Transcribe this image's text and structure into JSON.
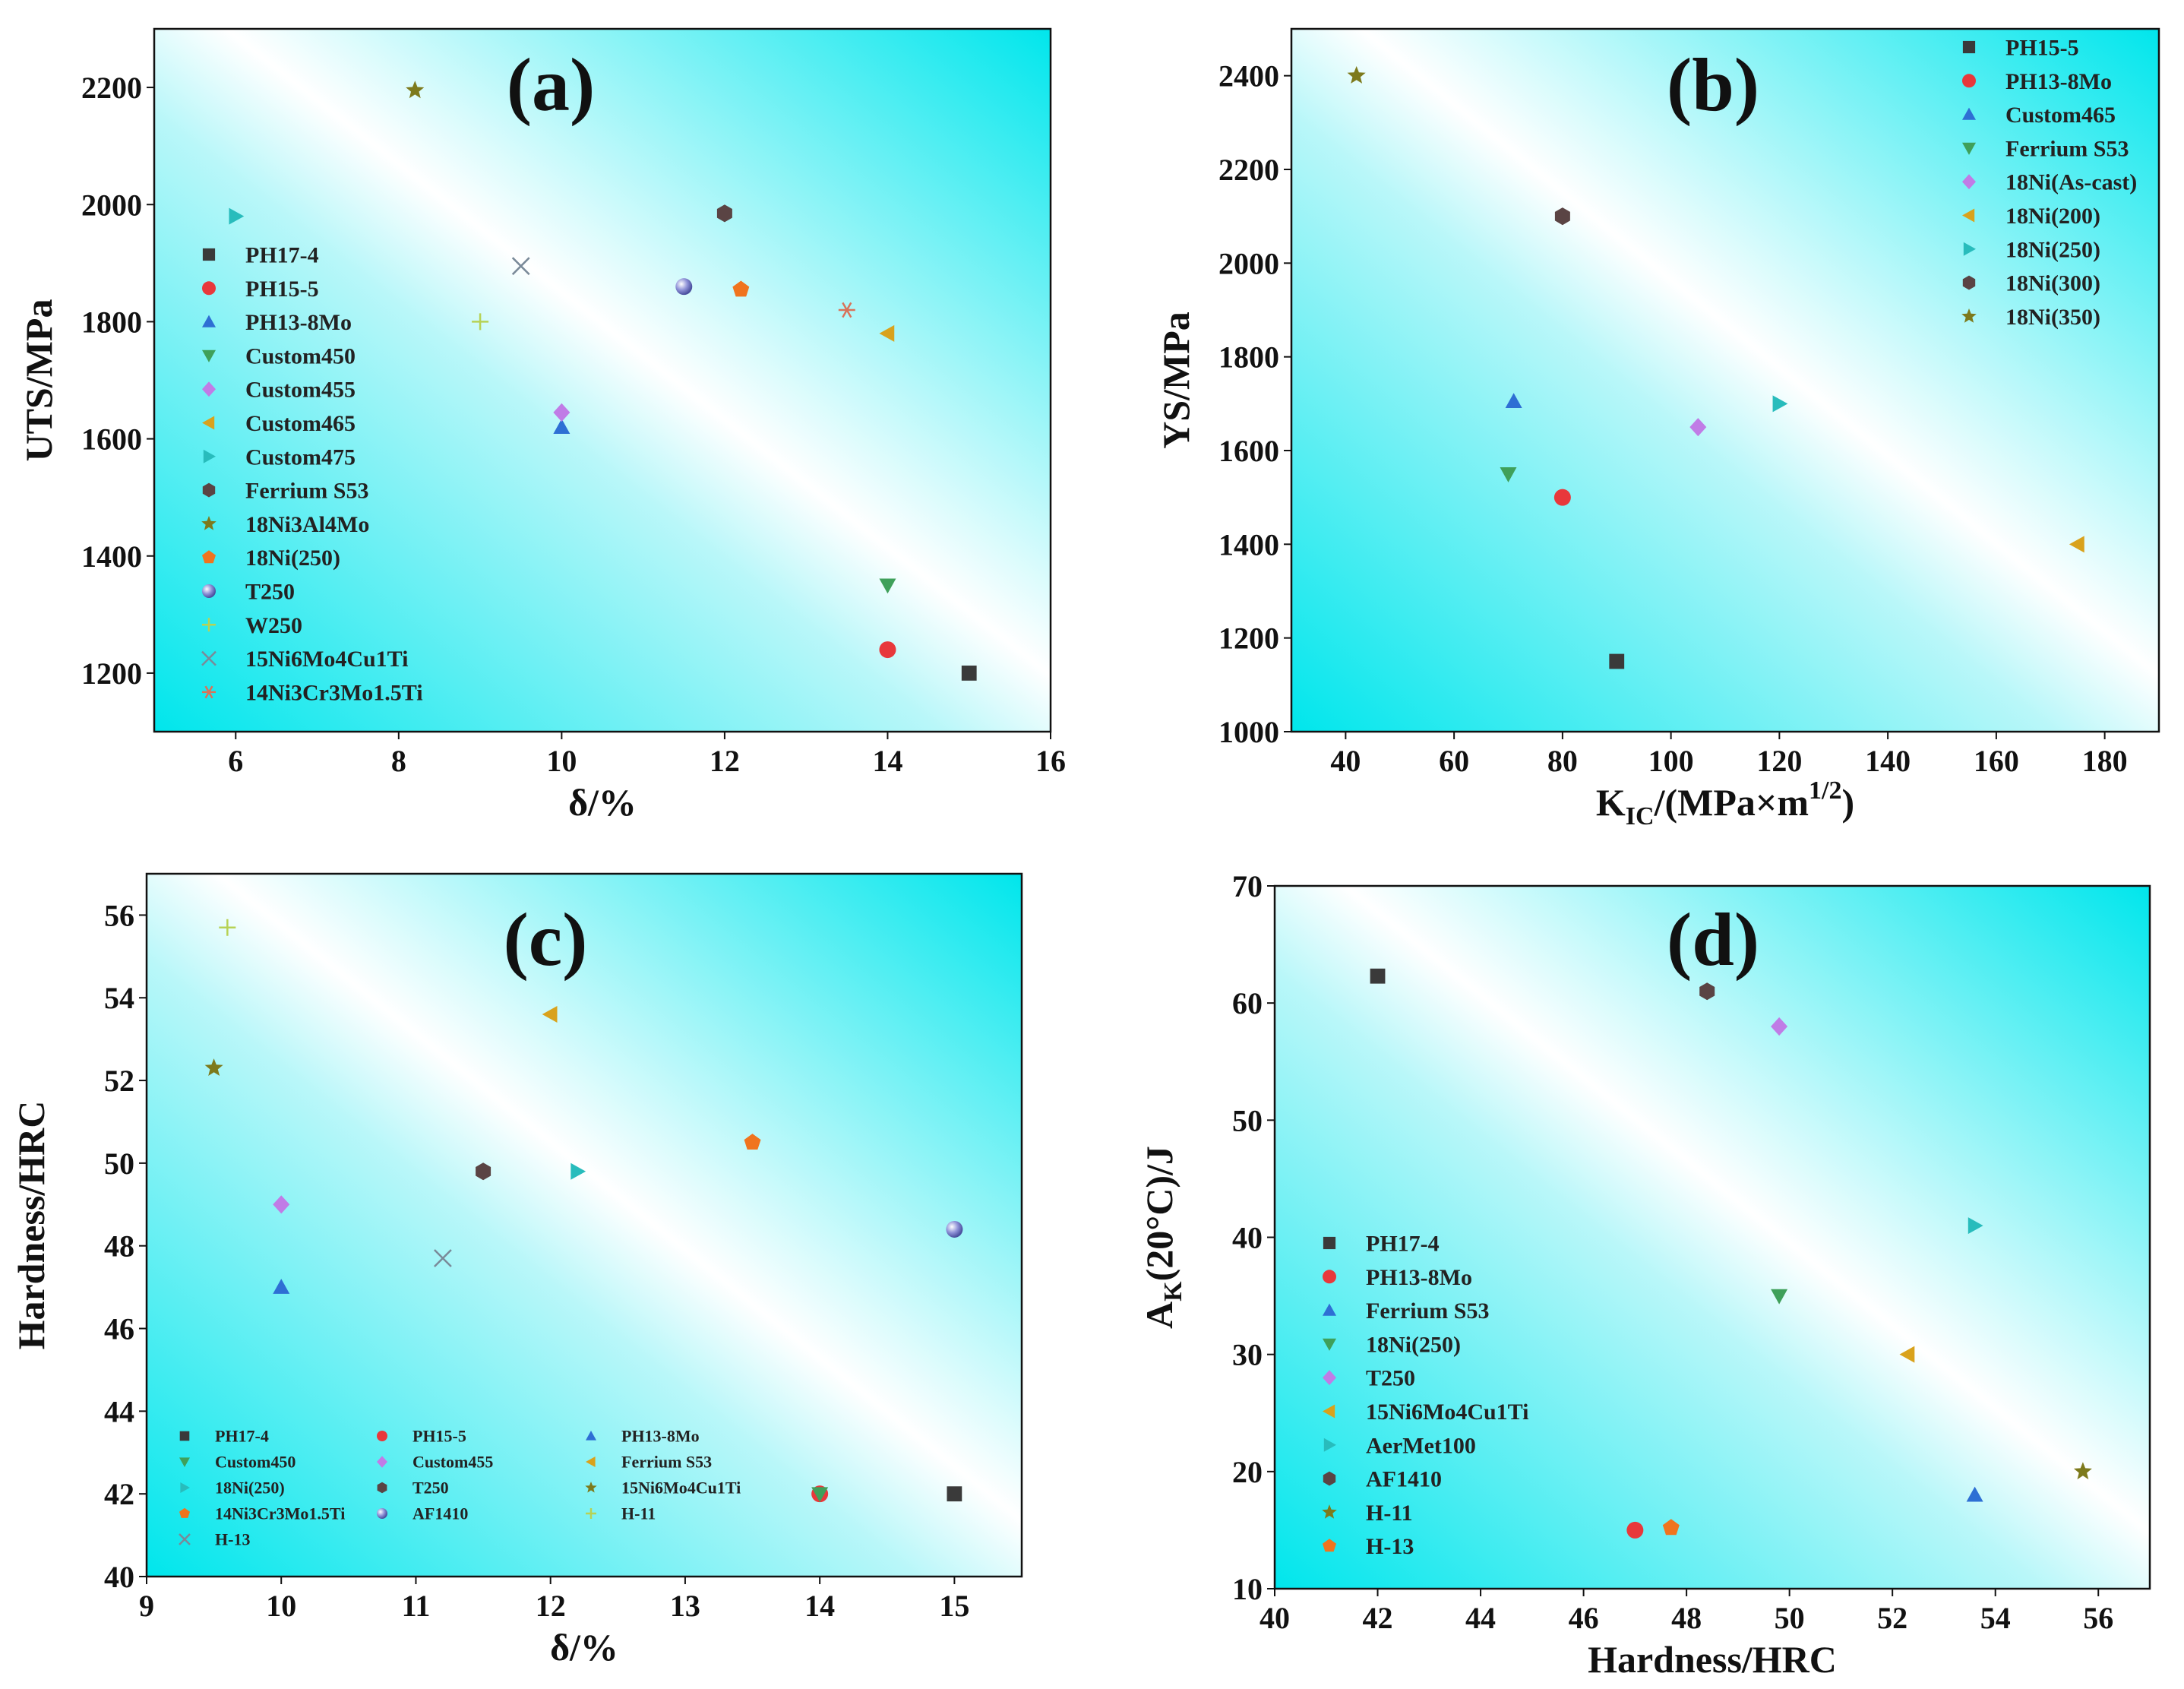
{
  "marker_colors": {
    "square": "#3a3a3a",
    "circle": "#e8383b",
    "triangle-up": "#2e6fd4",
    "triangle-down": "#3fa05a",
    "diamond": "#c07ce6",
    "triangle-left": "#d9a21c",
    "triangle-right": "#28bcbc",
    "hexagon": "#5a4444",
    "star": "#7d7a1c",
    "pentagon": "#f0741e",
    "sphere": "#8f92d8",
    "plus": "#b7d255",
    "x": "#7a8a99",
    "asterisk": "#d8735a"
  },
  "plot_gradient": {
    "from": "#00e6ec",
    "mid": "#b9f7f9",
    "to": "#ffffff"
  },
  "chart_data": [
    {
      "id": "a",
      "type": "scatter",
      "title": "(a)",
      "xlabel": "δ/%",
      "ylabel": "UTS/MPa",
      "xlim": [
        5,
        16
      ],
      "ylim": [
        1100,
        2300
      ],
      "xticks": [
        6,
        8,
        10,
        12,
        14,
        16
      ],
      "yticks": [
        1200,
        1400,
        1600,
        1800,
        2000,
        2200
      ],
      "legend": {
        "placement": "left",
        "columns": 1
      },
      "series": [
        {
          "name": "PH17-4",
          "marker": "square",
          "points": [
            [
              15,
              1200
            ]
          ]
        },
        {
          "name": "PH15-5",
          "marker": "circle",
          "points": [
            [
              14,
              1240
            ]
          ]
        },
        {
          "name": "PH13-8Mo",
          "marker": "triangle-up",
          "points": [
            [
              10,
              1620
            ]
          ]
        },
        {
          "name": "Custom450",
          "marker": "triangle-down",
          "points": [
            [
              14,
              1350
            ]
          ]
        },
        {
          "name": "Custom455",
          "marker": "diamond",
          "points": [
            [
              10,
              1645
            ]
          ]
        },
        {
          "name": "Custom465",
          "marker": "triangle-left",
          "points": [
            [
              14,
              1780
            ]
          ]
        },
        {
          "name": "Custom475",
          "marker": "triangle-right",
          "points": [
            [
              6,
              1980
            ]
          ]
        },
        {
          "name": "Ferrium S53",
          "marker": "hexagon",
          "points": [
            [
              12,
              1985
            ]
          ]
        },
        {
          "name": "18Ni3Al4Mo",
          "marker": "star",
          "points": [
            [
              8.2,
              2195
            ]
          ]
        },
        {
          "name": "18Ni(250)",
          "marker": "pentagon",
          "points": [
            [
              12.2,
              1855
            ]
          ]
        },
        {
          "name": "T250",
          "marker": "sphere",
          "points": [
            [
              11.5,
              1860
            ]
          ]
        },
        {
          "name": "W250",
          "marker": "plus",
          "points": [
            [
              9,
              1800
            ]
          ]
        },
        {
          "name": "15Ni6Mo4Cu1Ti",
          "marker": "x",
          "points": [
            [
              9.5,
              1895
            ]
          ]
        },
        {
          "name": "14Ni3Cr3Mo1.5Ti",
          "marker": "asterisk",
          "points": [
            [
              13.5,
              1820
            ]
          ]
        }
      ]
    },
    {
      "id": "b",
      "type": "scatter",
      "title": "(b)",
      "xlabel": "K",
      "xlabel_sub": "IC",
      "xlabel_rest": "/(MPa×m",
      "xlabel_sup": "1/2",
      "xlabel_end": ")",
      "ylabel": "YS/MPa",
      "xlim": [
        30,
        190
      ],
      "ylim": [
        1000,
        2500
      ],
      "xticks": [
        40,
        60,
        80,
        100,
        120,
        140,
        160,
        180
      ],
      "yticks": [
        1000,
        1200,
        1400,
        1600,
        1800,
        2000,
        2200,
        2400
      ],
      "legend": {
        "placement": "top-right",
        "columns": 1
      },
      "series": [
        {
          "name": "PH15-5",
          "marker": "square",
          "points": [
            [
              90,
              1150
            ]
          ]
        },
        {
          "name": "PH13-8Mo",
          "marker": "circle",
          "points": [
            [
              80,
              1500
            ]
          ]
        },
        {
          "name": "Custom465",
          "marker": "triangle-up",
          "points": [
            [
              71,
              1705
            ]
          ]
        },
        {
          "name": "Ferrium S53",
          "marker": "triangle-down",
          "points": [
            [
              70,
              1550
            ]
          ]
        },
        {
          "name": "18Ni(As-cast)",
          "marker": "diamond",
          "points": [
            [
              105,
              1650
            ]
          ]
        },
        {
          "name": "18Ni(200)",
          "marker": "triangle-left",
          "points": [
            [
              175,
              1400
            ]
          ]
        },
        {
          "name": "18Ni(250)",
          "marker": "triangle-right",
          "points": [
            [
              120,
              1700
            ]
          ]
        },
        {
          "name": "18Ni(300)",
          "marker": "hexagon",
          "points": [
            [
              80,
              2100
            ]
          ]
        },
        {
          "name": "18Ni(350)",
          "marker": "star",
          "points": [
            [
              42,
              2400
            ]
          ]
        }
      ]
    },
    {
      "id": "c",
      "type": "scatter",
      "title": "(c)",
      "xlabel": "δ/%",
      "ylabel": "Hardness/HRC",
      "xlim": [
        9,
        15.5
      ],
      "ylim": [
        40,
        57
      ],
      "xticks": [
        9,
        10,
        11,
        12,
        13,
        14,
        15
      ],
      "yticks": [
        40,
        42,
        44,
        46,
        48,
        50,
        52,
        54,
        56
      ],
      "legend": {
        "placement": "bottom-left",
        "columns": 3
      },
      "series": [
        {
          "name": "PH17-4",
          "marker": "square",
          "points": [
            [
              15,
              42
            ]
          ]
        },
        {
          "name": "PH15-5",
          "marker": "circle",
          "points": [
            [
              14,
              42
            ]
          ]
        },
        {
          "name": "PH13-8Mo",
          "marker": "triangle-up",
          "points": [
            [
              10,
              47
            ]
          ]
        },
        {
          "name": "Custom450",
          "marker": "triangle-down",
          "points": [
            [
              14,
              42
            ]
          ]
        },
        {
          "name": "Custom455",
          "marker": "diamond",
          "points": [
            [
              10,
              49
            ]
          ]
        },
        {
          "name": "Ferrium S53",
          "marker": "triangle-left",
          "points": [
            [
              12,
              53.6
            ]
          ]
        },
        {
          "name": "18Ni(250)",
          "marker": "triangle-right",
          "points": [
            [
              12.2,
              49.8
            ]
          ]
        },
        {
          "name": "T250",
          "marker": "hexagon",
          "points": [
            [
              11.5,
              49.8
            ]
          ]
        },
        {
          "name": "15Ni6Mo4Cu1Ti",
          "marker": "star",
          "points": [
            [
              9.5,
              52.3
            ]
          ]
        },
        {
          "name": "14Ni3Cr3Mo1.5Ti",
          "marker": "pentagon",
          "points": [
            [
              13.5,
              50.5
            ]
          ]
        },
        {
          "name": "AF1410",
          "marker": "sphere",
          "points": [
            [
              15,
              48.4
            ]
          ]
        },
        {
          "name": "H-11",
          "marker": "plus",
          "points": [
            [
              9.6,
              55.7
            ]
          ]
        },
        {
          "name": "H-13",
          "marker": "x",
          "points": [
            [
              11.2,
              47.7
            ]
          ]
        }
      ]
    },
    {
      "id": "d",
      "type": "scatter",
      "title": "(d)",
      "xlabel": "Hardness/HRC",
      "ylabel": "A",
      "ylabel_sub": "K",
      "ylabel_rest": "(20°C)/J",
      "xlim": [
        40,
        57
      ],
      "ylim": [
        10,
        70
      ],
      "xticks": [
        40,
        42,
        44,
        46,
        48,
        50,
        52,
        54,
        56
      ],
      "yticks": [
        10,
        20,
        30,
        40,
        50,
        60,
        70
      ],
      "legend": {
        "placement": "left",
        "columns": 1
      },
      "series": [
        {
          "name": "PH17-4",
          "marker": "square",
          "points": [
            [
              42,
              62.3
            ]
          ]
        },
        {
          "name": "PH13-8Mo",
          "marker": "circle",
          "points": [
            [
              47,
              15
            ]
          ]
        },
        {
          "name": "Ferrium S53",
          "marker": "triangle-up",
          "points": [
            [
              53.6,
              18
            ]
          ]
        },
        {
          "name": "18Ni(250)",
          "marker": "triangle-down",
          "points": [
            [
              49.8,
              35
            ]
          ]
        },
        {
          "name": "T250",
          "marker": "diamond",
          "points": [
            [
              49.8,
              58
            ]
          ]
        },
        {
          "name": "15Ni6Mo4Cu1Ti",
          "marker": "triangle-left",
          "points": [
            [
              52.3,
              30
            ]
          ]
        },
        {
          "name": "AerMet100",
          "marker": "triangle-right",
          "points": [
            [
              53.6,
              41
            ]
          ]
        },
        {
          "name": "AF1410",
          "marker": "hexagon",
          "points": [
            [
              48.4,
              61
            ]
          ]
        },
        {
          "name": "H-11",
          "marker": "star",
          "points": [
            [
              55.7,
              20
            ]
          ]
        },
        {
          "name": "H-13",
          "marker": "pentagon",
          "points": [
            [
              47.7,
              15.2
            ]
          ]
        }
      ]
    }
  ]
}
